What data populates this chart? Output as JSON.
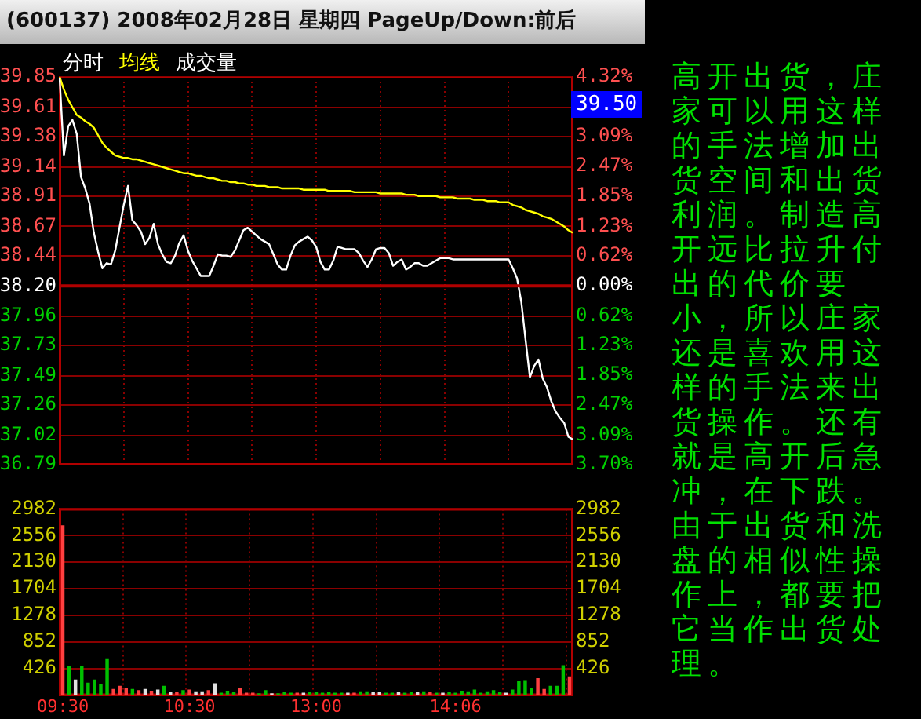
{
  "chart_data": [
    {
      "type": "line",
      "title": "(600137) 2008年02月28日 星期四 PageUp/Down:前后",
      "legend": "top left",
      "grid": true,
      "tick_labels": "y",
      "marker": "none",
      "annotations": [
        "高开出货，庄家可以用这样的手法增加出货空间和出货利润。制造高开远比拉升付出的代价要小，所以庄家还是喜欢用这样的手法来出货操作。还有就是高开后急冲，在下跌。由于出货和洗盘的相似性操作上，都要把它当作出货处理。",
        "39.50"
      ],
      "categories": [
        null,
        null,
        null,
        null,
        null,
        null,
        null,
        null,
        null,
        null,
        null,
        null,
        null,
        null,
        null,
        null,
        null,
        null,
        null,
        null,
        null,
        null,
        null,
        null,
        null,
        null,
        null,
        null,
        null,
        null,
        null,
        null,
        null,
        null,
        null,
        null,
        null,
        null,
        null,
        null,
        null,
        null,
        null,
        null,
        null,
        null,
        null,
        null,
        null,
        null,
        null,
        null,
        null,
        null,
        null,
        null,
        null,
        null,
        null,
        null,
        null,
        null,
        null,
        null,
        null,
        null,
        null,
        null,
        null,
        null,
        null,
        null,
        null,
        null,
        null,
        null,
        null,
        null,
        null,
        null,
        null,
        null,
        null,
        null,
        null,
        null,
        null,
        null,
        null,
        null,
        null,
        null,
        null,
        null,
        null,
        null,
        null,
        null,
        null,
        null,
        null,
        null,
        null,
        null,
        null,
        null,
        null,
        null,
        null,
        null,
        null,
        null,
        null,
        null,
        null,
        null,
        null,
        null,
        null,
        null,
        null
      ],
      "ylim": [
        36.79,
        39.85
      ],
      "yticks": [
        39.85,
        39.61,
        39.38,
        39.14,
        38.91,
        38.67,
        38.44,
        {
          "value": 38.2,
          "label": "38.20"
        },
        37.96,
        37.73,
        37.49,
        37.26,
        37.02,
        36.79
      ],
      "y2lim": [
        -3.7,
        4.32
      ],
      "y2ticks": [
        {
          "value": 4.32,
          "label": "4.32%"
        },
        {
          "value": 3.09,
          "label": "3.09%"
        },
        {
          "value": 2.47,
          "label": "2.47%"
        },
        {
          "value": 1.85,
          "label": "1.85%"
        },
        {
          "value": 1.23,
          "label": "1.23%"
        },
        {
          "value": 0.62,
          "label": "0.62%"
        },
        {
          "value": 0,
          "label": "0.00%"
        },
        {
          "value": -0.62,
          "label": "0.62%"
        },
        {
          "value": -1.23,
          "label": "1.23%"
        },
        {
          "value": -1.85,
          "label": "1.85%"
        },
        {
          "value": -2.47,
          "label": "2.47%"
        },
        {
          "value": -3.09,
          "label": "3.09%"
        },
        {
          "value": -3.7,
          "label": "3.70%"
        }
      ],
      "ref_lines": [
        {
          "axis": "y",
          "value": 38.2,
          "label": null,
          "color": "#b00000"
        }
      ],
      "series": [
        {
          "name": "分时",
          "color": "#ffffff",
          "values": [
            39.84,
            39.23,
            39.46,
            39.51,
            39.4,
            39.06,
            38.97,
            38.85,
            38.62,
            38.47,
            38.34,
            38.38,
            38.37,
            38.48,
            38.66,
            38.84,
            38.99,
            38.72,
            38.68,
            38.63,
            38.53,
            38.58,
            38.69,
            38.53,
            38.45,
            38.39,
            38.38,
            38.44,
            38.54,
            38.6,
            38.48,
            38.4,
            38.34,
            38.28,
            38.28,
            38.28,
            38.36,
            38.45,
            38.44,
            38.44,
            38.43,
            38.48,
            38.56,
            38.64,
            38.66,
            38.63,
            38.6,
            38.57,
            38.55,
            38.53,
            38.45,
            38.37,
            38.33,
            38.33,
            38.44,
            38.52,
            38.55,
            38.57,
            38.59,
            38.56,
            38.51,
            38.39,
            38.33,
            38.33,
            38.4,
            38.51,
            38.5,
            38.49,
            38.49,
            38.49,
            38.46,
            38.4,
            38.35,
            38.41,
            38.49,
            38.5,
            38.5,
            38.46,
            38.36,
            38.39,
            38.41,
            38.33,
            38.35,
            38.38,
            38.38,
            38.36,
            38.36,
            38.38,
            38.4,
            38.42,
            38.42,
            38.42,
            38.41,
            38.41,
            38.41,
            38.41,
            38.41,
            38.41,
            38.41,
            38.41,
            38.41,
            38.41,
            38.41,
            38.41,
            38.41,
            38.41,
            38.34,
            38.26,
            38.07,
            37.77,
            37.48,
            37.57,
            37.62,
            37.47,
            37.4,
            37.29,
            37.21,
            37.16,
            37.12,
            37.01,
            36.99
          ]
        },
        {
          "name": "均线",
          "color": "#ffff00",
          "values": [
            39.85,
            39.75,
            39.67,
            39.61,
            39.55,
            39.53,
            39.5,
            39.48,
            39.45,
            39.39,
            39.33,
            39.29,
            39.26,
            39.23,
            39.22,
            39.21,
            39.21,
            39.2,
            39.2,
            39.19,
            39.18,
            39.17,
            39.16,
            39.15,
            39.14,
            39.13,
            39.12,
            39.11,
            39.1,
            39.09,
            39.09,
            39.08,
            39.07,
            39.07,
            39.06,
            39.05,
            39.05,
            39.04,
            39.03,
            39.03,
            39.02,
            39.02,
            39.01,
            39.01,
            39.0,
            39.0,
            38.99,
            38.99,
            38.99,
            38.98,
            38.98,
            38.98,
            38.97,
            38.97,
            38.97,
            38.97,
            38.97,
            38.96,
            38.96,
            38.96,
            38.96,
            38.96,
            38.96,
            38.95,
            38.95,
            38.95,
            38.95,
            38.95,
            38.95,
            38.94,
            38.94,
            38.94,
            38.94,
            38.94,
            38.94,
            38.93,
            38.93,
            38.93,
            38.93,
            38.93,
            38.93,
            38.92,
            38.92,
            38.92,
            38.91,
            38.91,
            38.91,
            38.91,
            38.91,
            38.9,
            38.9,
            38.9,
            38.9,
            38.89,
            38.89,
            38.89,
            38.89,
            38.88,
            38.88,
            38.88,
            38.87,
            38.87,
            38.87,
            38.86,
            38.86,
            38.86,
            38.84,
            38.83,
            38.82,
            38.8,
            38.79,
            38.78,
            38.77,
            38.75,
            38.74,
            38.73,
            38.71,
            38.69,
            38.67,
            38.64,
            38.62
          ]
        }
      ]
    },
    {
      "type": "bar",
      "legend": "top left",
      "grid": true,
      "categories": [
        "09:30",
        null,
        null,
        null,
        null,
        null,
        null,
        null,
        null,
        null,
        null,
        null,
        null,
        null,
        null,
        null,
        null,
        null,
        null,
        null,
        "10:30",
        null,
        null,
        null,
        null,
        null,
        null,
        null,
        null,
        null,
        null,
        null,
        null,
        null,
        null,
        null,
        null,
        null,
        null,
        null,
        "13:00",
        null,
        null,
        null,
        null,
        null,
        null,
        null,
        null,
        null,
        null,
        null,
        null,
        null,
        null,
        null,
        null,
        null,
        null,
        null,
        null,
        null,
        "14:06",
        null,
        null,
        null,
        null,
        null,
        null,
        null,
        null,
        null,
        null,
        null,
        null,
        null,
        null,
        null,
        null,
        null,
        null
      ],
      "ylim": [
        0,
        2982
      ],
      "yticks": [
        426,
        852,
        1278,
        1704,
        2130,
        2556,
        2982
      ],
      "y2lim": [
        0,
        2982
      ],
      "y2ticks": [
        426,
        852,
        1278,
        1704,
        2130,
        2556,
        2982
      ],
      "series": [
        {
          "name": "成交量",
          "values": [
            2720,
            460,
            250,
            460,
            200,
            250,
            180,
            590,
            100,
            150,
            120,
            100,
            80,
            100,
            70,
            90,
            150,
            50,
            50,
            80,
            90,
            60,
            60,
            80,
            190,
            40,
            70,
            50,
            110,
            40,
            40,
            30,
            80,
            30,
            30,
            50,
            40,
            40,
            40,
            50,
            50,
            40,
            50,
            40,
            40,
            40,
            40,
            60,
            60,
            50,
            50,
            40,
            40,
            50,
            40,
            50,
            50,
            60,
            50,
            40,
            40,
            50,
            40,
            70,
            60,
            90,
            40,
            60,
            80,
            50,
            40,
            90,
            220,
            240,
            120,
            270,
            100,
            150,
            150,
            480,
            300
          ],
          "colors": [
            "#ff4040",
            "#00c000",
            "#e0e0e0",
            "#00c000",
            "#00c000",
            "#00c000",
            "#00c000",
            "#00c000",
            "#ff4040",
            "#ff4040",
            "#ff4040",
            "#00c000",
            "#ff4040",
            "#e0e0e0",
            "#ff4040",
            "#e0e0e0",
            "#00c000",
            "#e0e0e0",
            "#ff4040",
            "#00c000",
            "#ff4040",
            "#e0e0e0",
            "#e0e0e0",
            "#ff4040",
            "#e0e0e0",
            "#00c000",
            "#00c000",
            "#00c000",
            "#ff4040",
            "#ff4040",
            "#ff4040",
            "#00c000",
            "#00c000",
            "#e0e0e0",
            "#00c000",
            "#00c000",
            "#00c000",
            "#ff4040",
            "#e0e0e0",
            "#00c000",
            "#00c000",
            "#00c000",
            "#00c000",
            "#00c000",
            "#00c000",
            "#e0e0e0",
            "#ff4040",
            "#00c000",
            "#00c000",
            "#e0e0e0",
            "#e0e0e0",
            "#00c000",
            "#00c000",
            "#e0e0e0",
            "#00c000",
            "#00c000",
            "#e0e0e0",
            "#00c000",
            "#ff4040",
            "#00c000",
            "#e0e0e0",
            "#00c000",
            "#00c000",
            "#00c000",
            "#00c000",
            "#00c000",
            "#00c000",
            "#00c000",
            "#00c000",
            "#00c000",
            "#e0e0e0",
            "#00c000",
            "#00c000",
            "#00c000",
            "#00c000",
            "#ff4040",
            "#ff4040",
            "#00c000",
            "#00c000",
            "#00c000",
            "#ff4040"
          ]
        }
      ]
    }
  ]
}
